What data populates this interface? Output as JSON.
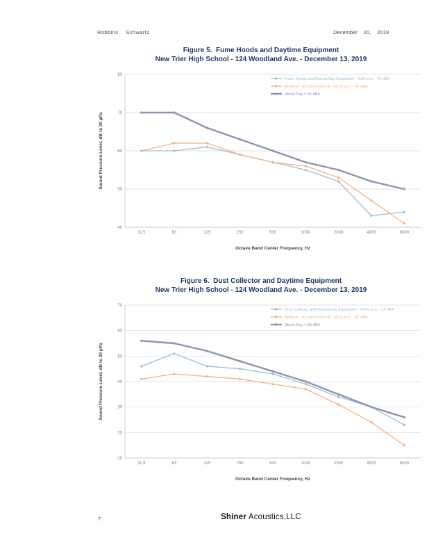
{
  "header": {
    "firm_name_part1": "Robbins",
    "firm_name_part2": "Schwartz",
    "date": "December 20, 2019"
  },
  "footer": {
    "page_number": "7",
    "company_name_bold": "Shiner",
    "company_name_rest": " Acoustics,LLC"
  },
  "chart_data": [
    {
      "type": "line",
      "title": "Figure 5.  Fume Hoods and Daytime Equipment",
      "subtitle": "New Trier High School - 124 Woodland Ave. - December 13, 2019",
      "xlabel": "Octave Band Center Frequency, Hz",
      "ylabel": "Sound Pressure Level, dB re 20 µPa",
      "categories": [
        "31.5",
        "63",
        "125",
        "250",
        "500",
        "1000",
        "2000",
        "4000",
        "8000"
      ],
      "ylim": [
        40,
        80
      ],
      "ytick_step": 10,
      "grid": true,
      "legend_position": "top-right",
      "series": [
        {
          "name": "Fume Hoods and Normal Day Equipment - 9:09 a.m. - 49 dBA",
          "color": "#9cbfd3",
          "line_width": 1.3,
          "values": [
            60,
            60,
            61,
            59,
            57,
            55,
            52,
            43,
            44
          ]
        },
        {
          "name": "Ambient - All equipment off - 05:16 a.m. - 47 dBA",
          "color": "#f4b183",
          "line_width": 1.3,
          "values": [
            60,
            62,
            62,
            59,
            57,
            56,
            53,
            47,
            41
          ]
        },
        {
          "name": "Illinois Day = 55 dBA",
          "color": "#8f92b1",
          "line_width": 2.4,
          "values": [
            70,
            70,
            66,
            63,
            60,
            57,
            55,
            52,
            50
          ]
        }
      ]
    },
    {
      "type": "line",
      "title": "Figure 6.  Dust Collector and Daytime Equipment",
      "subtitle": "New Trier High School - 124 Woodland Ave. - December 13, 2019",
      "xlabel": "Octave Band Center Frequency, Hz",
      "ylabel": "Sound Pressure Level, dB re 20 µPa",
      "categories": [
        "31.5",
        "63",
        "125",
        "250",
        "500",
        "1000",
        "2000",
        "4000",
        "8000"
      ],
      "ylim": [
        10,
        70
      ],
      "ytick_step": 10,
      "grid": true,
      "legend_position": "top-right",
      "series": [
        {
          "name": "Dust Collector and Normal Day Equipment - 09:06 a.m. - 52 dBA",
          "color": "#9cbfd3",
          "line_width": 1.3,
          "values": [
            46,
            51,
            46,
            45,
            43,
            39,
            34,
            30,
            23
          ]
        },
        {
          "name": "Ambient - All equipment off - 05:15 a.m. - 47 dBA",
          "color": "#f4b183",
          "line_width": 1.3,
          "values": [
            41,
            43,
            42,
            41,
            39,
            37,
            31,
            24,
            15
          ]
        },
        {
          "name": "Illinois Day = 55 dBA",
          "color": "#8f92b1",
          "line_width": 2.4,
          "values": [
            56,
            55,
            52,
            48,
            44,
            40,
            35,
            30,
            26
          ]
        }
      ]
    }
  ]
}
